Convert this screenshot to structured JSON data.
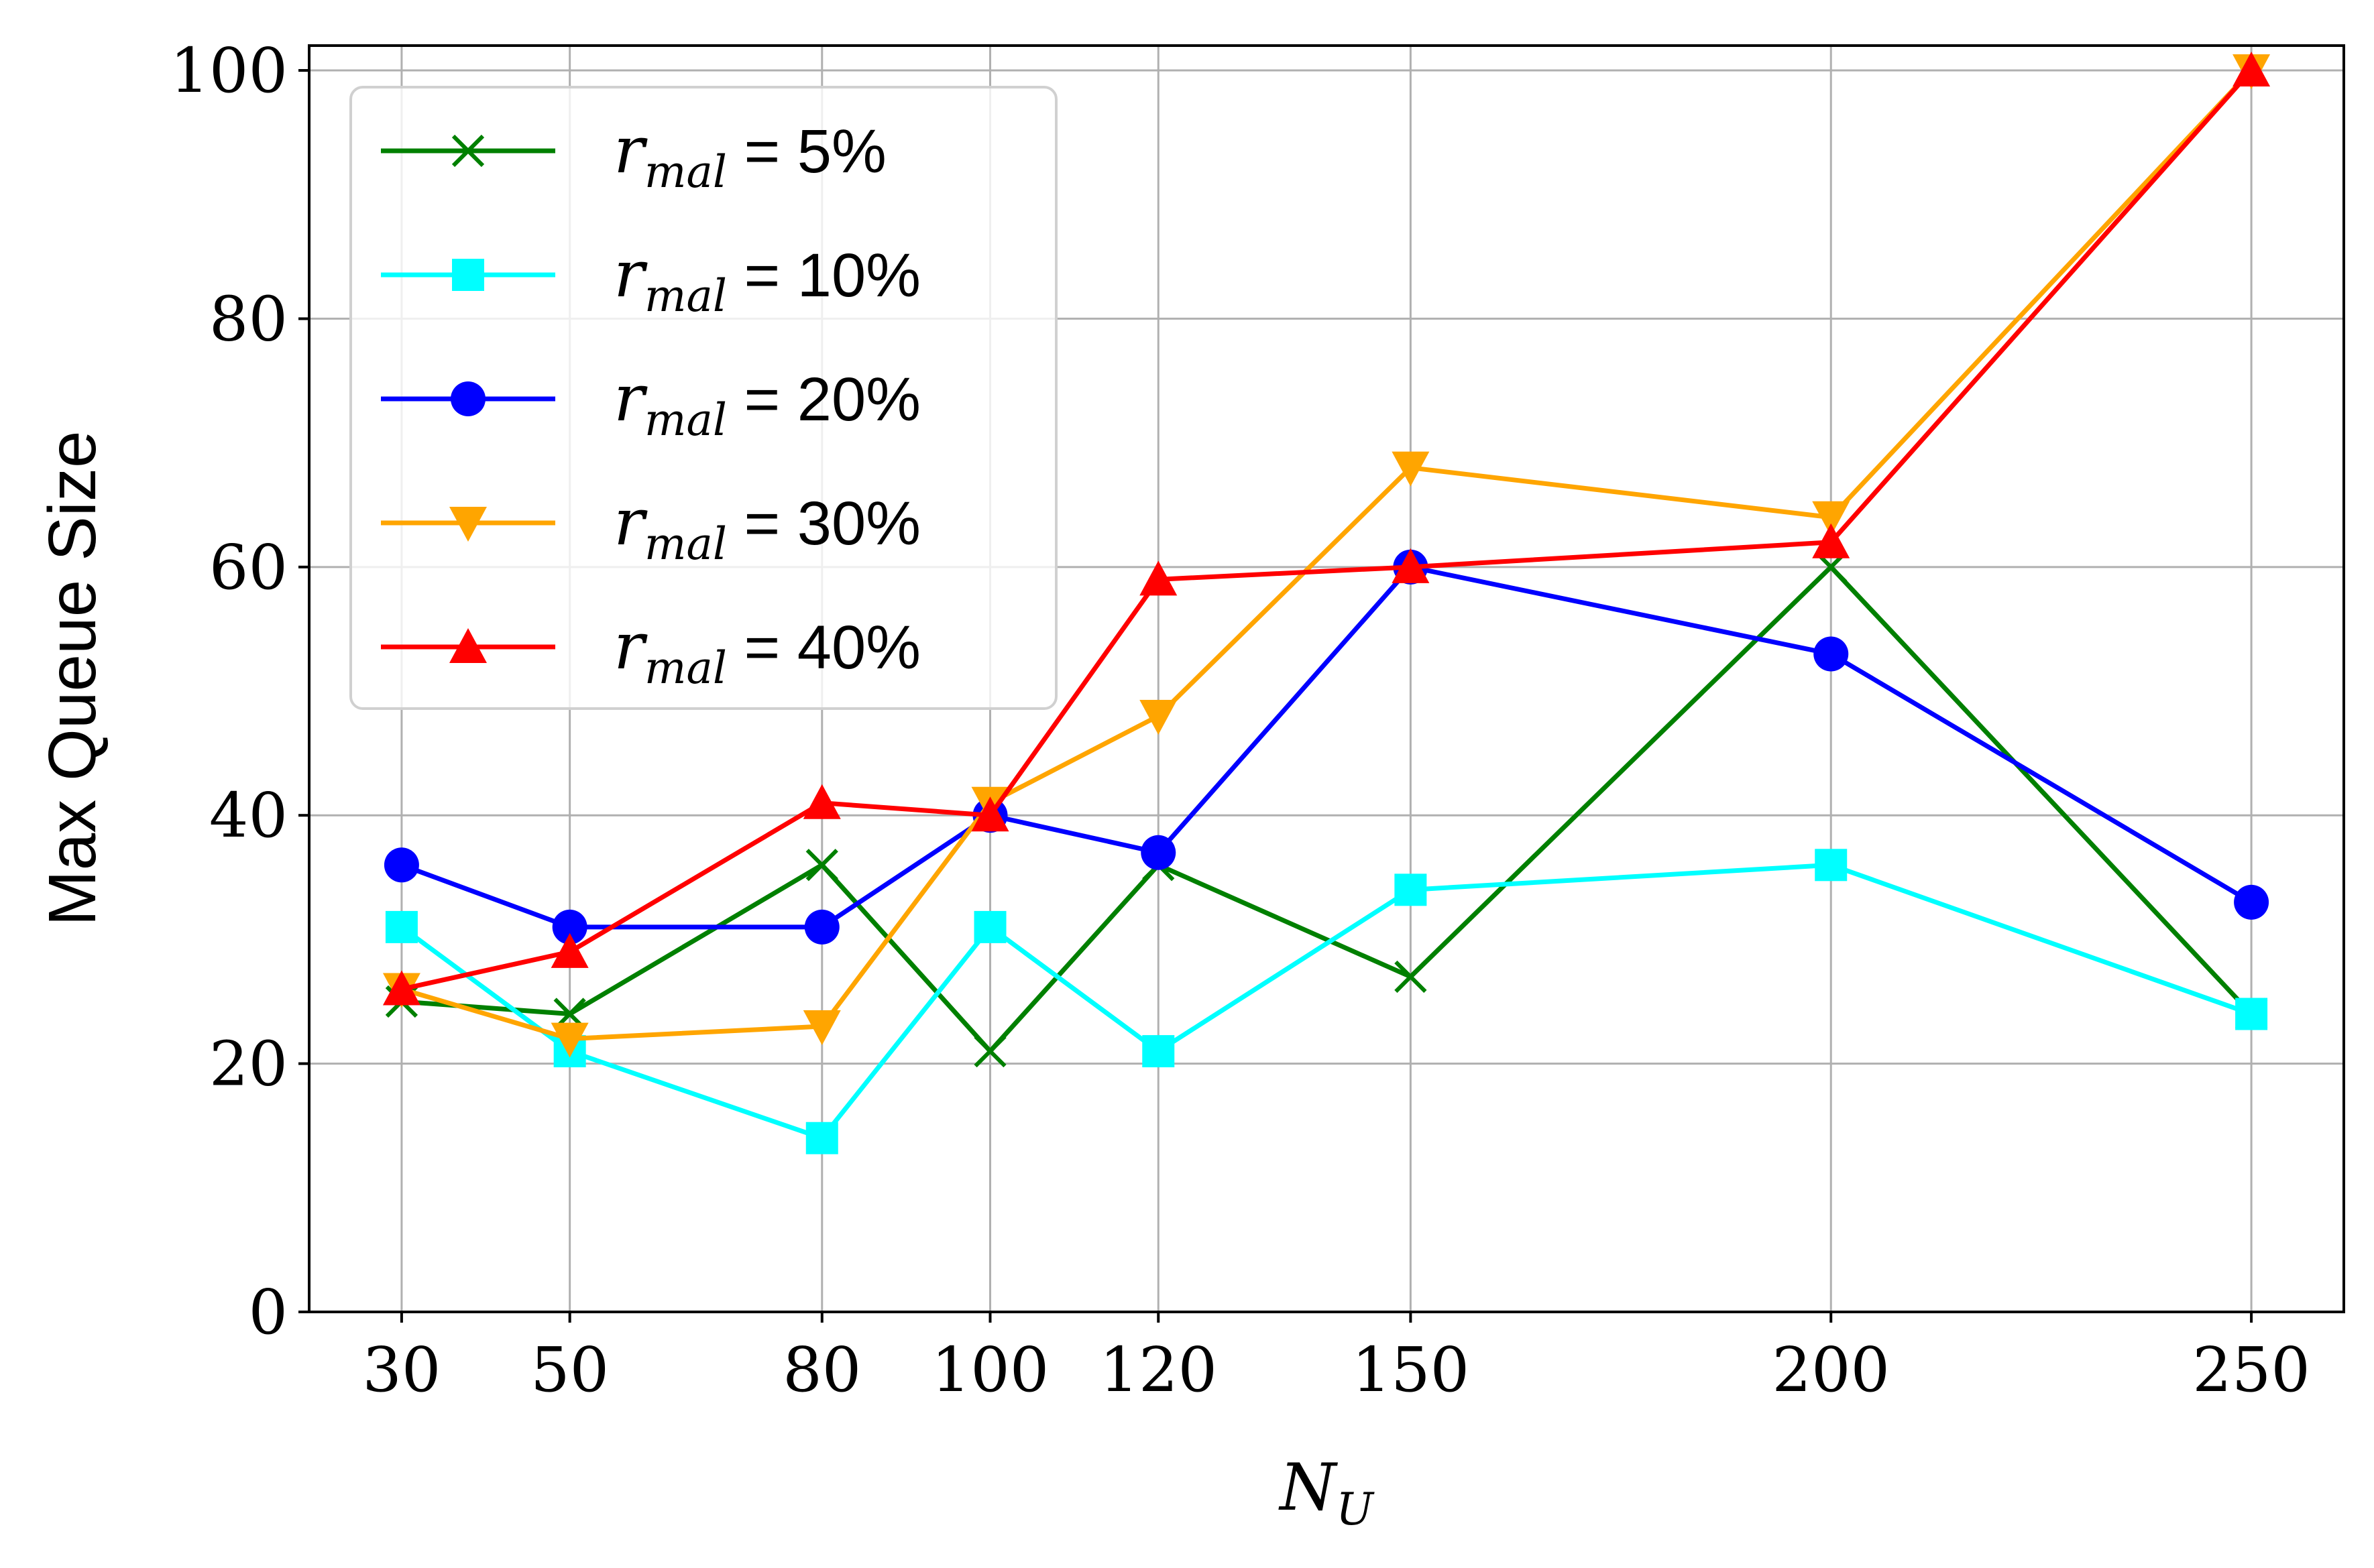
{
  "chart_data": {
    "type": "line",
    "xlabel": "N",
    "xlabel_subscript": "U",
    "ylabel": "Max Queue Size",
    "x": [
      30,
      50,
      80,
      100,
      120,
      150,
      200,
      250
    ],
    "x_tick_labels": [
      "30",
      "50",
      "80",
      "100",
      "120",
      "150",
      "200",
      "250"
    ],
    "y_tick_labels": [
      "0",
      "20",
      "40",
      "60",
      "80",
      "100"
    ],
    "ylim": [
      0,
      102
    ],
    "xlim": [
      19,
      261
    ],
    "grid": true,
    "legend_placement": "top-left",
    "legend_symbol": "r",
    "legend_subscript": "mal",
    "series": [
      {
        "name": "5%",
        "color": "#008000",
        "marker": "x",
        "values": [
          25,
          24,
          36,
          21,
          36,
          27,
          60,
          24
        ]
      },
      {
        "name": "10%",
        "color": "#00ffff",
        "marker": "square",
        "values": [
          31,
          21,
          14,
          31,
          21,
          34,
          36,
          24
        ]
      },
      {
        "name": "20%",
        "color": "#0000ff",
        "marker": "circle",
        "values": [
          36,
          31,
          31,
          40,
          37,
          60,
          53,
          33
        ]
      },
      {
        "name": "30%",
        "color": "#ffa500",
        "marker": "triangle-down",
        "values": [
          26,
          22,
          23,
          41,
          48,
          68,
          64,
          100
        ]
      },
      {
        "name": "40%",
        "color": "#ff0000",
        "marker": "triangle-up",
        "values": [
          26,
          29,
          41,
          40,
          59,
          60,
          62,
          100
        ]
      }
    ]
  }
}
